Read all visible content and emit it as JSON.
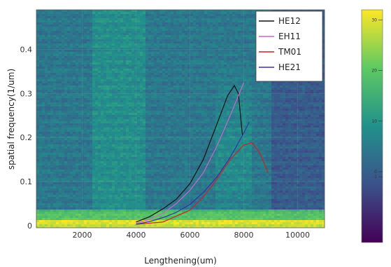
{
  "chart_data": {
    "type": "heatmap",
    "title": "",
    "xlabel": "Lengthening(um)",
    "ylabel": "spatial frequency(1/um)",
    "xlim": [
      300,
      11000
    ],
    "ylim": [
      -0.005,
      0.49
    ],
    "x_ticks": [
      "2000",
      "4000",
      "6000",
      "8000",
      "10000"
    ],
    "y_ticks": [
      "0",
      "0.1",
      "0.2",
      "0.3",
      "0.4"
    ],
    "colormap": "viridis",
    "colorbar": {
      "range": [
        -14,
        32
      ],
      "ticks": [
        "30",
        "20",
        "10",
        "0",
        "-1"
      ]
    },
    "legend": {
      "position": "top-right"
    },
    "series": [
      {
        "name": "HE12",
        "color": "#111111",
        "x": [
          4000,
          4500,
          5000,
          5500,
          6000,
          6500,
          7000,
          7400,
          7650,
          7800,
          7950
        ],
        "y": [
          0.008,
          0.02,
          0.038,
          0.06,
          0.095,
          0.15,
          0.23,
          0.295,
          0.318,
          0.3,
          0.205
        ]
      },
      {
        "name": "EH11",
        "color": "#cc66cc",
        "x": [
          4000,
          4500,
          5000,
          5500,
          6000,
          6500,
          7000,
          7500,
          8000
        ],
        "y": [
          0.005,
          0.014,
          0.028,
          0.05,
          0.08,
          0.12,
          0.18,
          0.25,
          0.325
        ]
      },
      {
        "name": "TM01",
        "color": "#cc2222",
        "x": [
          4000,
          5000,
          6000,
          6500,
          7000,
          7500,
          8000,
          8300,
          8600,
          8900
        ],
        "y": [
          0.003,
          0.008,
          0.035,
          0.065,
          0.105,
          0.15,
          0.183,
          0.188,
          0.165,
          0.12
        ]
      },
      {
        "name": "HE21",
        "color": "#3333aa",
        "x": [
          4000,
          4500,
          5000,
          5500,
          6000,
          6500,
          7000,
          7500,
          8000,
          8200
        ],
        "y": [
          0.003,
          0.009,
          0.018,
          0.03,
          0.048,
          0.075,
          0.11,
          0.155,
          0.21,
          0.235
        ]
      }
    ]
  }
}
